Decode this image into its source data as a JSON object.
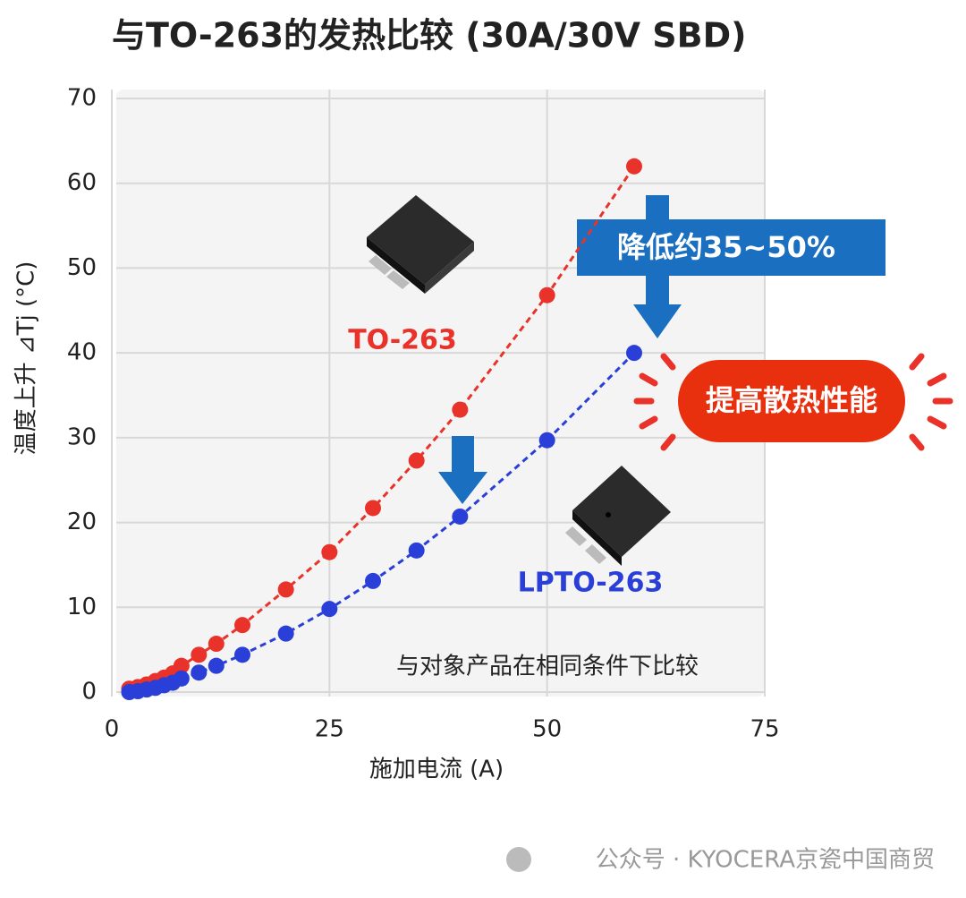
{
  "chart_data": {
    "type": "line",
    "title": "与TO-263的发热比较 (30A/30V SBD)",
    "x_label": "施加电流 (A)",
    "y_label": "温度上升 ⊿Tj (°C)",
    "x": [
      2,
      3,
      4,
      5,
      6,
      7,
      8,
      10,
      12,
      15,
      20,
      25,
      30,
      35,
      40,
      50,
      60
    ],
    "series": [
      {
        "name": "TO-263",
        "color": "#e8322a",
        "values": [
          0.4,
          0.6,
          0.9,
          1.3,
          1.7,
          2.2,
          3.1,
          4.4,
          5.7,
          7.9,
          12.1,
          16.5,
          21.7,
          27.3,
          33.3,
          46.8,
          62
        ]
      },
      {
        "name": "LPTO-263",
        "color": "#2a3fd8",
        "values": [
          0.0,
          0.1,
          0.3,
          0.5,
          0.8,
          1.1,
          1.6,
          2.3,
          3.1,
          4.4,
          6.9,
          9.8,
          13.1,
          16.7,
          20.7,
          29.7,
          40
        ]
      }
    ],
    "xlim": [
      0,
      75
    ],
    "xticks": [
      0,
      25,
      50,
      75
    ],
    "ylim": [
      0,
      70
    ],
    "yticks": [
      0,
      10,
      20,
      30,
      40,
      50,
      60,
      70
    ],
    "grid": true,
    "annotations": [
      "降低约35~50%",
      "提高散热性能",
      "与对象产品在相同条件下比较"
    ]
  },
  "footer": "公众号 · KYOCERA京瓷中国商贸"
}
